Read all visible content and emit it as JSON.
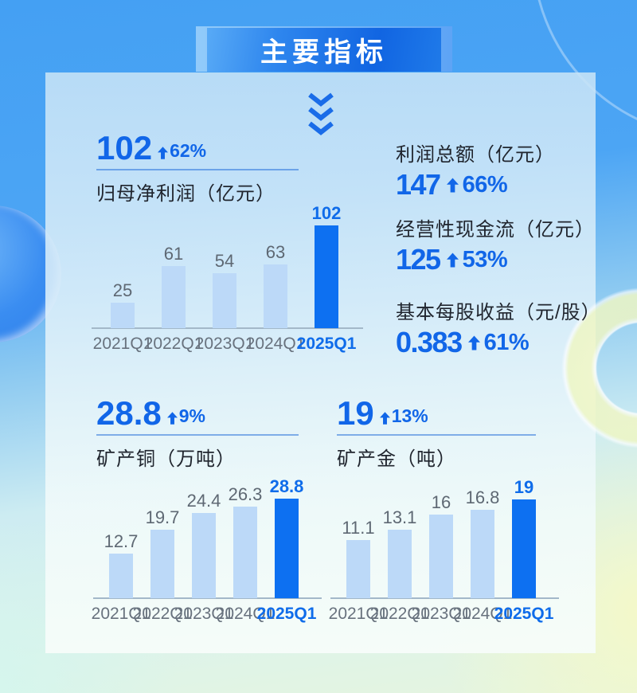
{
  "banner": {
    "title": "主要指标"
  },
  "stats": {
    "net_profit": {
      "value": "102",
      "pct": "62%",
      "label": "归母净利润（亿元）"
    },
    "total_profit": {
      "label": "利润总额（亿元）",
      "value": "147",
      "pct": "66%"
    },
    "cash_flow": {
      "label": "经营性现金流（亿元）",
      "value": "125",
      "pct": "53%"
    },
    "eps": {
      "label": "基本每股收益（元/股）",
      "value": "0.383",
      "pct": "61%"
    },
    "copper": {
      "value": "28.8",
      "pct": "9%",
      "label": "矿产铜（万吨）"
    },
    "gold": {
      "value": "19",
      "pct": "13%",
      "label": "矿产金（吨）"
    }
  },
  "colors": {
    "accent_blue": "#1166e8",
    "highlight_bar": "#0d70f1",
    "light_bar": "#bcd9f8",
    "banner_gradient_start": "#58aaf6",
    "banner_gradient_end": "#1165e2",
    "gray_label": "#68727e",
    "dark_label": "#20252e",
    "ring_yellow": "#f3f7c2"
  },
  "icons": [
    "chevrons-down-icon",
    "up-arrow-icon"
  ],
  "chart_data": [
    {
      "type": "bar",
      "title": "归母净利润（亿元）",
      "categories": [
        "2021Q1",
        "2022Q1",
        "2023Q1",
        "2024Q1",
        "2025Q1"
      ],
      "values": [
        25,
        61,
        54,
        63,
        102
      ],
      "highlight_index": 4,
      "bar_color": "#bcd9f8",
      "highlight_color": "#0d70f1",
      "ylim": [
        0,
        102
      ],
      "grid": false,
      "legend": false
    },
    {
      "type": "bar",
      "title": "矿产铜（万吨）",
      "categories": [
        "2021Q1",
        "2022Q1",
        "2023Q1",
        "2024Q1",
        "2025Q1"
      ],
      "values": [
        12.7,
        19.7,
        24.4,
        26.3,
        28.8
      ],
      "highlight_index": 4,
      "bar_color": "#bcd9f8",
      "highlight_color": "#0d70f1",
      "ylim": [
        0,
        28.8
      ],
      "grid": false,
      "legend": false
    },
    {
      "type": "bar",
      "title": "矿产金（吨）",
      "categories": [
        "2021Q1",
        "2022Q1",
        "2023Q1",
        "2024Q1",
        "2025Q1"
      ],
      "values": [
        11.1,
        13.1,
        16,
        16.8,
        19
      ],
      "highlight_index": 4,
      "bar_color": "#bcd9f8",
      "highlight_color": "#0d70f1",
      "ylim": [
        0,
        19
      ],
      "grid": false,
      "legend": false
    }
  ]
}
